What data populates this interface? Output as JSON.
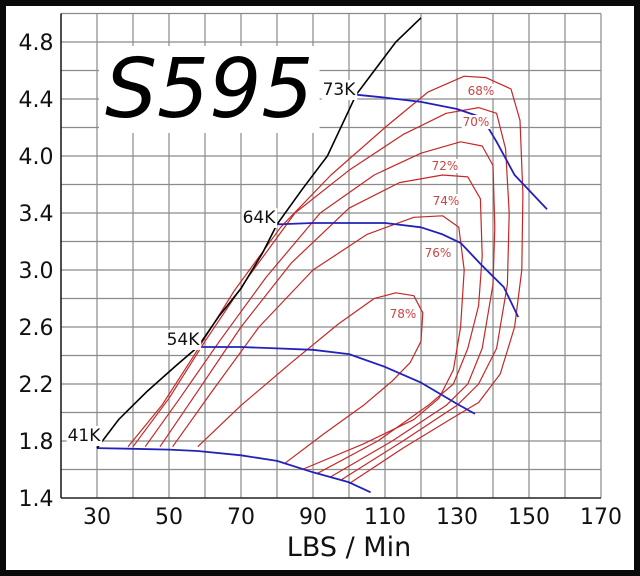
{
  "chart_data": {
    "type": "line",
    "title": "S595",
    "xlabel": "LBS / Min",
    "ylabel": "",
    "xlim": [
      20,
      170
    ],
    "x_ticks": [
      30,
      50,
      70,
      90,
      110,
      130,
      150,
      170
    ],
    "y_ticks": [
      1.4,
      1.8,
      2.2,
      2.6,
      3.0,
      3.4,
      4.0,
      4.4,
      4.8
    ],
    "y_tick_labels": [
      "1.4",
      "1.8",
      "2.2",
      "2.6",
      "3.0",
      "3.4",
      "4.0",
      "4.4",
      "4.8"
    ],
    "grid": true,
    "surge_line": {
      "color": "#000000",
      "points": [
        [
          30,
          1.75
        ],
        [
          36,
          1.95
        ],
        [
          44,
          2.15
        ],
        [
          52,
          2.33
        ],
        [
          58,
          2.46
        ],
        [
          64,
          2.68
        ],
        [
          70,
          2.87
        ],
        [
          76,
          3.12
        ],
        [
          80,
          3.32
        ],
        [
          87,
          3.65
        ],
        [
          94,
          4.0
        ],
        [
          102,
          4.43
        ],
        [
          113,
          4.8
        ],
        [
          120,
          4.97
        ]
      ]
    },
    "speed_lines": [
      {
        "name": "41K",
        "color": "#2222bb",
        "points": [
          [
            30,
            1.75
          ],
          [
            40,
            1.745
          ],
          [
            50,
            1.74
          ],
          [
            58,
            1.73
          ],
          [
            70,
            1.7
          ],
          [
            80,
            1.66
          ],
          [
            90,
            1.58
          ],
          [
            100,
            1.51
          ],
          [
            106,
            1.44
          ]
        ]
      },
      {
        "name": "54K",
        "color": "#2222bb",
        "points": [
          [
            58,
            2.46
          ],
          [
            70,
            2.46
          ],
          [
            80,
            2.45
          ],
          [
            90,
            2.44
          ],
          [
            100,
            2.41
          ],
          [
            110,
            2.32
          ],
          [
            120,
            2.21
          ],
          [
            130,
            2.06
          ],
          [
            135,
            1.99
          ]
        ]
      },
      {
        "name": "64K",
        "color": "#2222bb",
        "points": [
          [
            80,
            3.32
          ],
          [
            90,
            3.33
          ],
          [
            100,
            3.33
          ],
          [
            110,
            3.33
          ],
          [
            120,
            3.3
          ],
          [
            126,
            3.25
          ],
          [
            131,
            3.19
          ],
          [
            137,
            3.03
          ],
          [
            143,
            2.88
          ],
          [
            147,
            2.67
          ]
        ]
      },
      {
        "name": "73K",
        "color": "#2222bb",
        "points": [
          [
            102,
            4.43
          ],
          [
            110,
            4.41
          ],
          [
            120,
            4.38
          ],
          [
            130,
            4.33
          ],
          [
            137,
            4.27
          ],
          [
            141,
            4.1
          ],
          [
            146,
            3.8
          ],
          [
            151,
            3.6
          ],
          [
            155,
            3.44
          ]
        ]
      }
    ],
    "efficiency_islands": [
      {
        "name": "68%",
        "color": "#c62828",
        "points": [
          [
            38.6,
            1.76
          ],
          [
            48,
            2.05
          ],
          [
            56.7,
            2.39
          ],
          [
            68,
            2.85
          ],
          [
            81,
            3.3
          ],
          [
            95,
            3.8
          ],
          [
            110,
            4.2
          ],
          [
            122,
            4.45
          ],
          [
            132,
            4.56
          ],
          [
            138,
            4.55
          ],
          [
            145,
            4.47
          ],
          [
            147.5,
            4.25
          ],
          [
            148.3,
            3.6
          ],
          [
            148,
            3.0
          ],
          [
            146,
            2.6
          ],
          [
            142,
            2.27
          ],
          [
            136,
            2.07
          ],
          [
            128,
            1.95
          ],
          [
            115,
            1.75
          ],
          [
            100,
            1.5
          ]
        ]
      },
      {
        "name": "70%",
        "color": "#c62828",
        "points": [
          [
            40,
            1.76
          ],
          [
            50,
            2.1
          ],
          [
            60,
            2.5
          ],
          [
            72,
            2.95
          ],
          [
            85,
            3.4
          ],
          [
            100,
            3.85
          ],
          [
            115,
            4.15
          ],
          [
            127,
            4.3
          ],
          [
            136,
            4.34
          ],
          [
            141,
            4.3
          ],
          [
            143.5,
            4.05
          ],
          [
            144.5,
            3.4
          ],
          [
            144,
            2.9
          ],
          [
            141,
            2.45
          ],
          [
            136,
            2.2
          ],
          [
            130,
            2.05
          ],
          [
            115,
            1.8
          ],
          [
            98,
            1.53
          ]
        ]
      },
      {
        "name": "72%",
        "color": "#c62828",
        "points": [
          [
            43.4,
            1.76
          ],
          [
            53,
            2.1
          ],
          [
            64,
            2.5
          ],
          [
            77,
            2.95
          ],
          [
            92,
            3.4
          ],
          [
            107,
            3.8
          ],
          [
            120,
            4.02
          ],
          [
            131,
            4.1
          ],
          [
            137,
            4.07
          ],
          [
            140,
            3.9
          ],
          [
            140.5,
            3.3
          ],
          [
            140,
            2.9
          ],
          [
            137,
            2.45
          ],
          [
            133,
            2.2
          ],
          [
            127,
            2.05
          ],
          [
            112,
            1.8
          ],
          [
            95,
            1.55
          ]
        ]
      },
      {
        "name": "74%",
        "color": "#c62828",
        "points": [
          [
            47.5,
            1.76
          ],
          [
            58,
            2.15
          ],
          [
            70,
            2.6
          ],
          [
            84,
            3.05
          ],
          [
            100,
            3.45
          ],
          [
            114,
            3.72
          ],
          [
            126,
            3.8
          ],
          [
            133,
            3.78
          ],
          [
            136.5,
            3.55
          ],
          [
            137,
            3.1
          ],
          [
            136,
            2.75
          ],
          [
            133,
            2.45
          ],
          [
            129,
            2.2
          ],
          [
            122,
            2.05
          ],
          [
            108,
            1.8
          ],
          [
            91,
            1.57
          ]
        ]
      },
      {
        "name": "76%",
        "color": "#c62828",
        "points": [
          [
            51,
            1.76
          ],
          [
            62,
            2.15
          ],
          [
            75,
            2.6
          ],
          [
            90,
            3.0
          ],
          [
            105,
            3.25
          ],
          [
            118,
            3.37
          ],
          [
            126,
            3.38
          ],
          [
            130.5,
            3.3
          ],
          [
            132,
            3.0
          ],
          [
            131,
            2.6
          ],
          [
            129,
            2.3
          ],
          [
            125,
            2.1
          ],
          [
            118,
            1.95
          ],
          [
            104,
            1.78
          ],
          [
            87,
            1.6
          ]
        ]
      },
      {
        "name": "78%",
        "color": "#c62828",
        "points": [
          [
            58,
            1.76
          ],
          [
            70,
            2.05
          ],
          [
            84,
            2.35
          ],
          [
            97,
            2.62
          ],
          [
            107,
            2.8
          ],
          [
            113,
            2.84
          ],
          [
            118,
            2.82
          ],
          [
            120.5,
            2.7
          ],
          [
            120,
            2.5
          ],
          [
            117,
            2.35
          ],
          [
            112,
            2.22
          ],
          [
            104,
            2.05
          ],
          [
            93,
            1.85
          ],
          [
            82,
            1.64
          ]
        ]
      }
    ]
  }
}
